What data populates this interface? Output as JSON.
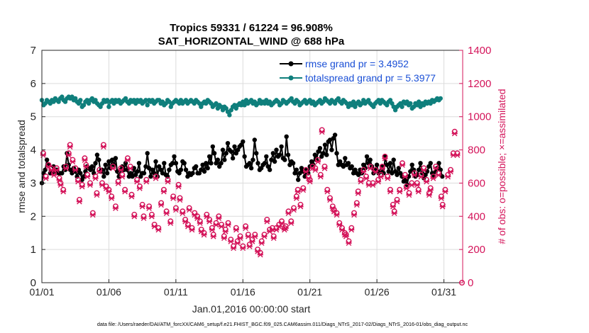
{
  "chart_data": {
    "type": "line",
    "title_line1": "Tropics 59331 / 61224 = 96.908%",
    "title_line2": "SAT_HORIZONTAL_WIND @ 688 hPa",
    "xlabel": "Jan.01,2016 00:00:00 start",
    "ylabel_left": "rmse and totalspread",
    "ylabel_right": "# of obs: o=possible; ×=assimilated",
    "footer": "data file: /Users/raeder/DAI/ATM_forcXX/CAM6_setup/f.e21.FHIST_BGC.f09_025.CAM6assim.011/Diags_NTrS_2017-02/Diags_NTrS_2016-01/obs_diag_output.nc",
    "xlim": [
      0,
      31.4
    ],
    "ylim_left": [
      0,
      7
    ],
    "ylim_right": [
      0,
      1400
    ],
    "x_ticks": [
      {
        "value": 0,
        "label": "01/01"
      },
      {
        "value": 5,
        "label": "01/06"
      },
      {
        "value": 10,
        "label": "01/11"
      },
      {
        "value": 15,
        "label": "01/16"
      },
      {
        "value": 20,
        "label": "01/21"
      },
      {
        "value": 25,
        "label": "01/26"
      },
      {
        "value": 30,
        "label": "01/31"
      }
    ],
    "y_left_ticks": [
      0,
      1,
      2,
      3,
      4,
      5,
      6,
      7
    ],
    "y_right_ticks": [
      0,
      200,
      400,
      600,
      800,
      1000,
      1200,
      1400
    ],
    "legend_position": "top-right",
    "colors": {
      "rmse": "#000000",
      "totalspread": "#0f7f7c",
      "obs": "#d4145a",
      "legend_text": "#1a4fd6",
      "axis": "#262626",
      "right_axis": "#d4145a",
      "grid": "#dcdcdc"
    },
    "series": [
      {
        "name": "rmse grand pr = 3.4952",
        "axis": "left",
        "step": 0.125,
        "values": [
          3.0,
          3.3,
          3.4,
          3.7,
          3.55,
          3.3,
          3.3,
          3.5,
          3.35,
          3.4,
          3.3,
          3.3,
          3.3,
          3.5,
          3.4,
          3.9,
          3.55,
          3.4,
          3.3,
          3.45,
          3.35,
          3.2,
          3.4,
          3.3,
          3.1,
          3.2,
          3.35,
          3.5,
          3.45,
          3.4,
          3.5,
          3.3,
          3.6,
          3.85,
          3.7,
          3.35,
          3.4,
          3.2,
          3.55,
          3.3,
          3.65,
          3.45,
          3.7,
          3.55,
          3.75,
          3.35,
          3.2,
          3.4,
          3.5,
          3.4,
          3.6,
          3.4,
          3.2,
          3.3,
          3.2,
          3.45,
          3.25,
          3.35,
          3.6,
          3.2,
          3.3,
          3.3,
          3.5,
          3.9,
          3.45,
          3.2,
          3.4,
          3.3,
          3.65,
          3.2,
          3.5,
          3.4,
          3.3,
          3.6,
          3.25,
          3.2,
          3.4,
          3.55,
          3.6,
          3.8,
          3.6,
          3.35,
          3.3,
          3.4,
          3.65,
          3.6,
          3.4,
          3.2,
          3.3,
          3.25,
          3.3,
          3.45,
          3.5,
          3.3,
          3.3,
          3.4,
          3.55,
          3.35,
          3.6,
          3.45,
          3.8,
          3.6,
          4.1,
          3.9,
          3.6,
          3.7,
          3.5,
          3.6,
          4.0,
          3.7,
          3.9,
          4.2,
          4.0,
          3.95,
          3.75,
          4.1,
          3.9,
          4.0,
          4.1,
          4.15,
          4.25,
          3.8,
          3.5,
          3.55,
          3.6,
          3.45,
          3.7,
          4.3,
          3.9,
          3.6,
          3.4,
          3.45,
          3.55,
          3.6,
          3.8,
          3.5,
          3.4,
          3.7,
          3.9,
          3.65,
          4.0,
          3.8,
          3.85,
          4.1,
          3.75,
          3.7,
          4.4,
          3.85,
          3.55,
          3.65,
          3.6,
          3.3,
          3.4,
          3.1,
          3.3,
          3.45,
          3.35,
          3.2,
          3.4,
          3.3,
          3.5,
          3.65,
          3.55,
          3.85,
          3.7,
          3.95,
          4.05,
          3.8,
          3.9,
          4.15,
          3.85,
          4.25,
          4.3,
          4.0,
          4.35,
          4.45,
          3.9,
          3.55,
          3.65,
          3.55,
          3.5,
          3.75,
          3.55,
          3.6,
          3.45,
          3.5,
          3.3,
          3.4,
          3.3,
          3.25,
          3.4,
          3.3,
          3.55,
          3.45,
          3.8,
          3.6,
          3.7,
          3.5,
          3.3,
          3.4,
          3.55,
          3.3,
          3.35,
          3.5,
          3.3,
          3.8,
          3.55,
          3.35,
          3.6,
          3.3,
          3.7,
          3.35,
          3.25,
          3.45,
          3.3,
          3.2,
          3.05,
          3.1,
          2.95,
          3.2,
          3.35,
          3.55,
          3.4,
          3.2,
          3.25,
          3.4,
          3.6,
          3.3,
          3.15,
          3.25,
          3.35,
          3.5,
          3.6,
          3.3,
          3.2,
          3.35,
          3.45,
          3.6,
          3.4,
          3.2
        ]
      },
      {
        "name": "totalspread grand pr = 5.3977",
        "axis": "left",
        "step": 0.125,
        "values": [
          5.5,
          5.35,
          5.4,
          5.5,
          5.45,
          5.4,
          5.5,
          5.45,
          5.55,
          5.5,
          5.45,
          5.55,
          5.6,
          5.5,
          5.45,
          5.55,
          5.6,
          5.55,
          5.6,
          5.5,
          5.55,
          5.45,
          5.4,
          5.5,
          5.3,
          5.35,
          5.45,
          5.5,
          5.4,
          5.5,
          5.55,
          5.45,
          5.5,
          5.4,
          5.35,
          5.3,
          5.4,
          5.5,
          5.45,
          5.5,
          5.3,
          5.45,
          5.5,
          5.4,
          5.5,
          5.45,
          5.5,
          5.4,
          5.45,
          5.5,
          5.55,
          5.45,
          5.4,
          5.5,
          5.45,
          5.5,
          5.4,
          5.5,
          5.45,
          5.5,
          5.4,
          5.45,
          5.5,
          5.35,
          5.5,
          5.45,
          5.5,
          5.4,
          5.45,
          5.5,
          5.5,
          5.4,
          5.45,
          5.35,
          5.4,
          5.5,
          5.45,
          5.3,
          5.4,
          5.45,
          5.5,
          5.45,
          5.4,
          5.5,
          5.4,
          5.45,
          5.5,
          5.4,
          5.45,
          5.5,
          5.45,
          5.4,
          5.5,
          5.45,
          5.4,
          5.3,
          5.4,
          5.45,
          5.4,
          5.5,
          5.45,
          5.4,
          5.3,
          5.35,
          5.4,
          5.25,
          5.35,
          5.3,
          5.2,
          5.3,
          5.25,
          5.15,
          5.05,
          5.2,
          5.3,
          5.35,
          5.25,
          5.35,
          5.4,
          5.35,
          5.45,
          5.35,
          5.5,
          5.4,
          5.45,
          5.5,
          5.4,
          5.45,
          5.35,
          5.4,
          5.5,
          5.4,
          5.45,
          5.4,
          5.5,
          5.4,
          5.45,
          5.35,
          5.4,
          5.45,
          5.5,
          5.45,
          5.35,
          5.4,
          5.5,
          5.45,
          5.4,
          5.45,
          5.5,
          5.55,
          5.45,
          5.4,
          5.5,
          5.45,
          5.35,
          5.4,
          5.45,
          5.5,
          5.4,
          5.45,
          5.5,
          5.4,
          5.45,
          5.35,
          5.4,
          5.45,
          5.5,
          5.4,
          5.45,
          5.55,
          5.5,
          5.45,
          5.4,
          5.5,
          5.45,
          5.4,
          5.5,
          5.55,
          5.45,
          5.4,
          5.5,
          5.45,
          5.4,
          5.3,
          5.4,
          5.35,
          5.45,
          5.3,
          5.4,
          5.45,
          5.35,
          5.4,
          5.5,
          5.4,
          5.45,
          5.5,
          5.4,
          5.35,
          5.3,
          5.4,
          5.45,
          5.5,
          5.4,
          5.5,
          5.45,
          5.4,
          5.35,
          5.45,
          5.5,
          5.4,
          5.3,
          5.2,
          5.3,
          5.35,
          5.4,
          5.3,
          5.45,
          5.4,
          5.45,
          5.35,
          5.4,
          5.25,
          5.3,
          5.4,
          5.35,
          5.45,
          5.3,
          5.4,
          5.35,
          5.45,
          5.4,
          5.45,
          5.4,
          5.5,
          5.45,
          5.5,
          5.55,
          5.5,
          5.55
        ]
      }
    ],
    "obs_possible": {
      "name": "possible",
      "axis": "right",
      "marker": "circle",
      "points": [
        [
          0.1,
          780
        ],
        [
          0.3,
          640
        ],
        [
          0.5,
          710
        ],
        [
          0.7,
          690
        ],
        [
          0.9,
          660
        ],
        [
          1.1,
          690
        ],
        [
          1.3,
          630
        ],
        [
          1.4,
          600
        ],
        [
          1.6,
          560
        ],
        [
          1.8,
          700
        ],
        [
          2.0,
          780
        ],
        [
          2.1,
          830
        ],
        [
          2.3,
          740
        ],
        [
          2.5,
          690
        ],
        [
          2.7,
          620
        ],
        [
          2.8,
          500
        ],
        [
          3.0,
          590
        ],
        [
          3.2,
          750
        ],
        [
          3.3,
          710
        ],
        [
          3.4,
          650
        ],
        [
          3.6,
          600
        ],
        [
          3.8,
          420
        ],
        [
          4.0,
          640
        ],
        [
          4.1,
          540
        ],
        [
          4.3,
          680
        ],
        [
          4.5,
          600
        ],
        [
          4.6,
          830
        ],
        [
          4.8,
          580
        ],
        [
          5.0,
          560
        ],
        [
          5.2,
          520
        ],
        [
          5.3,
          700
        ],
        [
          5.5,
          460
        ],
        [
          5.7,
          610
        ],
        [
          5.9,
          690
        ],
        [
          6.0,
          650
        ],
        [
          6.2,
          560
        ],
        [
          6.4,
          750
        ],
        [
          6.6,
          700
        ],
        [
          6.7,
          530
        ],
        [
          6.9,
          410
        ],
        [
          7.1,
          620
        ],
        [
          7.3,
          580
        ],
        [
          7.5,
          470
        ],
        [
          7.6,
          400
        ],
        [
          7.8,
          620
        ],
        [
          8.0,
          460
        ],
        [
          8.2,
          410
        ],
        [
          8.4,
          350
        ],
        [
          8.5,
          640
        ],
        [
          8.7,
          330
        ],
        [
          8.9,
          480
        ],
        [
          9.1,
          560
        ],
        [
          9.3,
          430
        ],
        [
          9.4,
          620
        ],
        [
          9.6,
          370
        ],
        [
          9.8,
          520
        ],
        [
          10.0,
          450
        ],
        [
          10.2,
          590
        ],
        [
          10.3,
          510
        ],
        [
          10.5,
          430
        ],
        [
          10.7,
          380
        ],
        [
          10.9,
          350
        ],
        [
          11.0,
          450
        ],
        [
          11.2,
          330
        ],
        [
          11.4,
          420
        ],
        [
          11.6,
          400
        ],
        [
          11.8,
          370
        ],
        [
          11.9,
          320
        ],
        [
          12.1,
          300
        ],
        [
          12.3,
          410
        ],
        [
          12.5,
          380
        ],
        [
          12.7,
          330
        ],
        [
          12.8,
          290
        ],
        [
          13.0,
          360
        ],
        [
          13.2,
          400
        ],
        [
          13.4,
          350
        ],
        [
          13.6,
          280
        ],
        [
          13.7,
          320
        ],
        [
          13.9,
          360
        ],
        [
          14.1,
          260
        ],
        [
          14.3,
          220
        ],
        [
          14.5,
          330
        ],
        [
          14.6,
          250
        ],
        [
          14.8,
          280
        ],
        [
          15.0,
          220
        ],
        [
          15.2,
          340
        ],
        [
          15.4,
          290
        ],
        [
          15.5,
          230
        ],
        [
          15.7,
          260
        ],
        [
          15.9,
          290
        ],
        [
          16.1,
          200
        ],
        [
          16.3,
          180
        ],
        [
          16.4,
          250
        ],
        [
          16.6,
          290
        ],
        [
          16.8,
          380
        ],
        [
          17.0,
          320
        ],
        [
          17.2,
          330
        ],
        [
          17.3,
          280
        ],
        [
          17.5,
          330
        ],
        [
          17.7,
          350
        ],
        [
          17.9,
          370
        ],
        [
          18.1,
          330
        ],
        [
          18.2,
          340
        ],
        [
          18.4,
          430
        ],
        [
          18.6,
          370
        ],
        [
          18.8,
          450
        ],
        [
          19.0,
          520
        ],
        [
          19.1,
          560
        ],
        [
          19.3,
          470
        ],
        [
          19.5,
          570
        ],
        [
          19.7,
          680
        ],
        [
          19.9,
          640
        ],
        [
          20.0,
          620
        ],
        [
          20.2,
          700
        ],
        [
          20.4,
          690
        ],
        [
          20.6,
          740
        ],
        [
          20.8,
          650
        ],
        [
          20.9,
          920
        ],
        [
          21.1,
          700
        ],
        [
          21.3,
          560
        ],
        [
          21.5,
          510
        ],
        [
          21.7,
          460
        ],
        [
          21.8,
          440
        ],
        [
          22.0,
          420
        ],
        [
          22.2,
          360
        ],
        [
          22.4,
          330
        ],
        [
          22.6,
          300
        ],
        [
          22.7,
          290
        ],
        [
          22.9,
          250
        ],
        [
          23.1,
          330
        ],
        [
          23.3,
          420
        ],
        [
          23.5,
          480
        ],
        [
          23.6,
          550
        ],
        [
          23.8,
          620
        ],
        [
          24.0,
          680
        ],
        [
          24.2,
          640
        ],
        [
          24.4,
          600
        ],
        [
          24.5,
          700
        ],
        [
          24.7,
          600
        ],
        [
          24.9,
          680
        ],
        [
          25.1,
          620
        ],
        [
          25.3,
          650
        ],
        [
          25.4,
          700
        ],
        [
          25.6,
          760
        ],
        [
          25.8,
          640
        ],
        [
          26.0,
          560
        ],
        [
          26.2,
          470
        ],
        [
          26.3,
          430
        ],
        [
          26.5,
          500
        ],
        [
          26.7,
          560
        ],
        [
          26.9,
          720
        ],
        [
          27.1,
          650
        ],
        [
          27.2,
          580
        ],
        [
          27.4,
          540
        ],
        [
          27.6,
          600
        ],
        [
          27.8,
          660
        ],
        [
          28.0,
          600
        ],
        [
          28.1,
          560
        ],
        [
          28.3,
          650
        ],
        [
          28.5,
          690
        ],
        [
          28.7,
          620
        ],
        [
          28.9,
          540
        ],
        [
          29.0,
          570
        ],
        [
          29.2,
          640
        ],
        [
          29.4,
          700
        ],
        [
          29.6,
          660
        ],
        [
          29.8,
          520
        ],
        [
          29.9,
          470
        ],
        [
          30.1,
          560
        ],
        [
          30.3,
          650
        ],
        [
          30.5,
          680
        ],
        [
          30.7,
          780
        ],
        [
          30.8,
          910
        ],
        [
          31.0,
          780
        ]
      ]
    },
    "obs_assimilated": {
      "name": "assimilated",
      "axis": "right",
      "marker": "x",
      "offset": -12
    }
  }
}
